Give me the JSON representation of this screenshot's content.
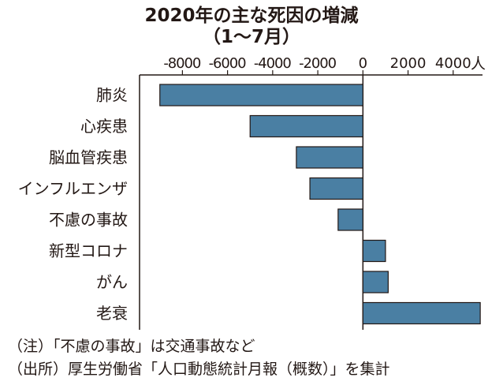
{
  "title": "2020年の主な死因の増減",
  "subtitle": "（1〜7月）",
  "chart_data": {
    "type": "bar",
    "orientation": "horizontal",
    "unit": "人",
    "categories": [
      "肺炎",
      "心疾患",
      "脳血管疾患",
      "インフルエンザ",
      "不慮の事故",
      "新型コロナ",
      "がん",
      "老衰"
    ],
    "values": [
      -9000,
      -5000,
      -2950,
      -2350,
      -1100,
      1000,
      1120,
      5200
    ],
    "x_ticks": [
      -8000,
      -6000,
      -4000,
      -2000,
      0,
      2000,
      4000
    ],
    "x_tick_labels": [
      "-8000",
      "-6000",
      "-4000",
      "-2000",
      "0",
      "2000",
      "4000"
    ],
    "xlim": [
      -9900,
      5300
    ],
    "bar_color": "#4a7fa3"
  },
  "notes": [
    "（注）「不慮の事故」は交通事故など",
    "（出所）厚生労働省「人口動態統計月報（概数）」を集計"
  ]
}
